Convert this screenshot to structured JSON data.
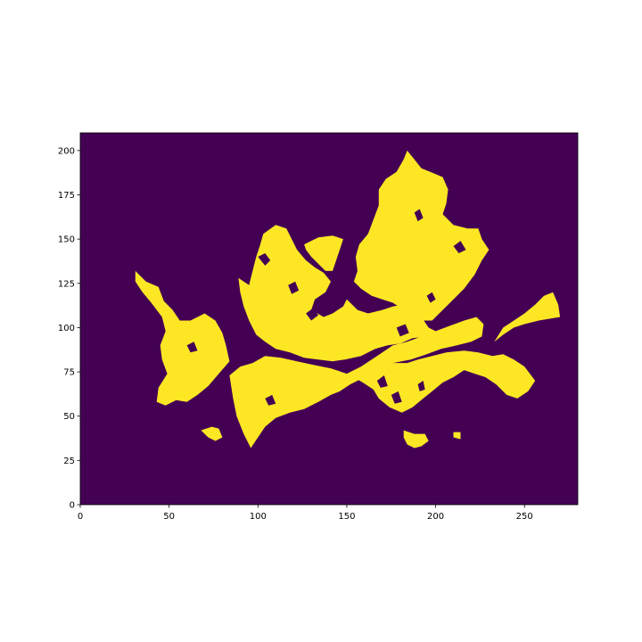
{
  "chart_data": {
    "type": "heatmap",
    "title": "",
    "xlabel": "",
    "ylabel": "",
    "xlim": [
      0,
      280
    ],
    "ylim": [
      0,
      210
    ],
    "origin": "lower",
    "grid": false,
    "colorbar": false,
    "xticks": [
      0,
      50,
      100,
      150,
      200,
      250
    ],
    "yticks": [
      0,
      25,
      50,
      75,
      100,
      125,
      150,
      175,
      200
    ],
    "xtick_labels": [
      "0",
      "50",
      "100",
      "150",
      "200",
      "250"
    ],
    "ytick_labels": [
      "0",
      "25",
      "50",
      "75",
      "100",
      "125",
      "150",
      "175",
      "200"
    ],
    "value_range": [
      0,
      1
    ],
    "colors": {
      "0": "#440154",
      "1": "#fde725"
    },
    "description_of_values": "binary mask: 1 = urban/built-up area (yellow), 0 = background (purple)",
    "mask_regions": [
      {
        "polygon": [
          [
            31,
            132
          ],
          [
            37,
            126
          ],
          [
            44,
            123
          ],
          [
            47,
            115
          ],
          [
            52,
            110
          ],
          [
            56,
            104
          ],
          [
            62,
            104
          ],
          [
            70,
            108
          ],
          [
            76,
            104
          ],
          [
            80,
            97
          ],
          [
            82,
            90
          ],
          [
            84,
            81
          ],
          [
            78,
            74
          ],
          [
            72,
            67
          ],
          [
            66,
            62
          ],
          [
            60,
            58
          ],
          [
            54,
            59
          ],
          [
            48,
            56
          ],
          [
            43,
            58
          ],
          [
            44,
            66
          ],
          [
            49,
            74
          ],
          [
            46,
            82
          ],
          [
            45,
            90
          ],
          [
            48,
            98
          ],
          [
            46,
            106
          ],
          [
            40,
            114
          ],
          [
            35,
            120
          ],
          [
            31,
            126
          ]
        ]
      },
      {
        "polygon": [
          [
            84,
            73
          ],
          [
            90,
            78
          ],
          [
            97,
            80
          ],
          [
            104,
            84
          ],
          [
            113,
            83
          ],
          [
            122,
            81
          ],
          [
            131,
            79
          ],
          [
            141,
            77
          ],
          [
            150,
            74
          ],
          [
            158,
            78
          ],
          [
            164,
            82
          ],
          [
            170,
            86
          ],
          [
            176,
            90
          ],
          [
            184,
            92
          ],
          [
            192,
            95
          ],
          [
            200,
            98
          ],
          [
            208,
            101
          ],
          [
            216,
            104
          ],
          [
            223,
            106
          ],
          [
            227,
            102
          ],
          [
            226,
            95
          ],
          [
            220,
            92
          ],
          [
            212,
            90
          ],
          [
            203,
            88
          ],
          [
            195,
            85
          ],
          [
            186,
            82
          ],
          [
            176,
            80
          ],
          [
            168,
            76
          ],
          [
            160,
            72
          ],
          [
            152,
            68
          ],
          [
            146,
            64
          ],
          [
            141,
            62
          ],
          [
            134,
            58
          ],
          [
            126,
            54
          ],
          [
            118,
            52
          ],
          [
            110,
            49
          ],
          [
            104,
            44
          ],
          [
            100,
            38
          ],
          [
            96,
            32
          ],
          [
            92,
            40
          ],
          [
            88,
            50
          ],
          [
            86,
            60
          ]
        ]
      },
      {
        "polygon": [
          [
            152,
            73
          ],
          [
            159,
            69
          ],
          [
            165,
            65
          ],
          [
            168,
            60
          ],
          [
            174,
            55
          ],
          [
            181,
            52
          ],
          [
            187,
            55
          ],
          [
            193,
            60
          ],
          [
            198,
            64
          ],
          [
            204,
            69
          ],
          [
            210,
            72
          ],
          [
            216,
            76
          ],
          [
            222,
            74
          ],
          [
            228,
            72
          ],
          [
            234,
            68
          ],
          [
            240,
            62
          ],
          [
            246,
            60
          ],
          [
            252,
            64
          ],
          [
            256,
            70
          ],
          [
            250,
            78
          ],
          [
            244,
            82
          ],
          [
            238,
            85
          ],
          [
            232,
            84
          ],
          [
            224,
            86
          ],
          [
            216,
            87
          ],
          [
            206,
            86
          ],
          [
            198,
            84
          ],
          [
            190,
            82
          ],
          [
            184,
            80
          ],
          [
            176,
            80
          ],
          [
            168,
            78
          ],
          [
            160,
            76
          ]
        ]
      },
      {
        "polygon": [
          [
            233,
            92
          ],
          [
            238,
            100
          ],
          [
            244,
            104
          ],
          [
            250,
            108
          ],
          [
            256,
            113
          ],
          [
            261,
            118
          ],
          [
            266,
            120
          ],
          [
            269,
            113
          ],
          [
            270,
            106
          ],
          [
            264,
            105
          ],
          [
            258,
            104
          ],
          [
            250,
            102
          ],
          [
            244,
            100
          ],
          [
            238,
            96
          ]
        ]
      },
      {
        "polygon": [
          [
            89,
            128
          ],
          [
            95,
            124
          ],
          [
            97,
            132
          ],
          [
            99,
            140
          ],
          [
            101,
            146
          ],
          [
            103,
            153
          ],
          [
            110,
            158
          ],
          [
            116,
            156
          ],
          [
            119,
            150
          ],
          [
            122,
            144
          ],
          [
            127,
            138
          ],
          [
            132,
            134
          ],
          [
            137,
            131
          ],
          [
            141,
            126
          ],
          [
            138,
            120
          ],
          [
            132,
            116
          ],
          [
            130,
            110
          ],
          [
            137,
            106
          ],
          [
            142,
            108
          ],
          [
            148,
            112
          ],
          [
            150,
            116
          ],
          [
            152,
            114
          ],
          [
            156,
            110
          ],
          [
            162,
            108
          ],
          [
            170,
            110
          ],
          [
            176,
            112
          ],
          [
            182,
            113
          ],
          [
            188,
            112
          ],
          [
            192,
            106
          ],
          [
            196,
            100
          ],
          [
            200,
            98
          ],
          [
            195,
            95
          ],
          [
            187,
            94
          ],
          [
            180,
            91
          ],
          [
            173,
            90
          ],
          [
            166,
            88
          ],
          [
            158,
            84
          ],
          [
            149,
            82
          ],
          [
            142,
            81
          ],
          [
            134,
            82
          ],
          [
            126,
            83
          ],
          [
            118,
            86
          ],
          [
            110,
            88
          ],
          [
            104,
            92
          ],
          [
            99,
            96
          ],
          [
            95,
            104
          ],
          [
            92,
            112
          ],
          [
            90,
            120
          ]
        ]
      },
      {
        "polygon": [
          [
            126,
            147
          ],
          [
            134,
            151
          ],
          [
            142,
            152
          ],
          [
            148,
            150
          ],
          [
            146,
            144
          ],
          [
            144,
            138
          ],
          [
            142,
            132
          ],
          [
            138,
            132
          ],
          [
            134,
            136
          ],
          [
            130,
            140
          ],
          [
            127,
            144
          ]
        ]
      },
      {
        "polygon": [
          [
            157,
            147
          ],
          [
            162,
            153
          ],
          [
            165,
            161
          ],
          [
            168,
            169
          ],
          [
            168,
            178
          ],
          [
            172,
            184
          ],
          [
            178,
            188
          ],
          [
            182,
            195
          ],
          [
            184,
            200
          ],
          [
            188,
            195
          ],
          [
            192,
            190
          ],
          [
            197,
            188
          ],
          [
            204,
            185
          ],
          [
            207,
            178
          ],
          [
            206,
            170
          ],
          [
            204,
            164
          ],
          [
            210,
            158
          ],
          [
            218,
            156
          ],
          [
            224,
            156
          ],
          [
            226,
            150
          ],
          [
            230,
            144
          ],
          [
            226,
            138
          ],
          [
            222,
            130
          ],
          [
            216,
            122
          ],
          [
            210,
            116
          ],
          [
            204,
            110
          ],
          [
            198,
            104
          ],
          [
            192,
            104
          ],
          [
            188,
            108
          ],
          [
            182,
            110
          ],
          [
            176,
            114
          ],
          [
            170,
            116
          ],
          [
            164,
            118
          ],
          [
            158,
            122
          ],
          [
            154,
            126
          ],
          [
            156,
            132
          ],
          [
            155,
            140
          ]
        ]
      },
      {
        "polygon": [
          [
            68,
            42
          ],
          [
            72,
            38
          ],
          [
            76,
            36
          ],
          [
            80,
            38
          ],
          [
            78,
            43
          ],
          [
            74,
            44
          ]
        ]
      },
      {
        "polygon": [
          [
            182,
            42
          ],
          [
            188,
            40
          ],
          [
            194,
            40
          ],
          [
            196,
            36
          ],
          [
            192,
            33
          ],
          [
            188,
            32
          ],
          [
            184,
            34
          ],
          [
            182,
            38
          ]
        ]
      },
      {
        "polygon": [
          [
            210,
            38
          ],
          [
            214,
            37
          ],
          [
            214,
            41
          ],
          [
            210,
            41
          ]
        ]
      }
    ],
    "mask_holes": [
      {
        "polygon": [
          [
            100,
            140
          ],
          [
            104,
            142
          ],
          [
            107,
            138
          ],
          [
            104,
            135
          ]
        ]
      },
      {
        "polygon": [
          [
            117,
            124
          ],
          [
            121,
            126
          ],
          [
            123,
            121
          ],
          [
            119,
            119
          ]
        ]
      },
      {
        "polygon": [
          [
            127,
            108
          ],
          [
            131,
            111
          ],
          [
            134,
            107
          ],
          [
            130,
            104
          ]
        ]
      },
      {
        "polygon": [
          [
            178,
            100
          ],
          [
            183,
            102
          ],
          [
            185,
            97
          ],
          [
            180,
            95
          ]
        ]
      },
      {
        "polygon": [
          [
            195,
            118
          ],
          [
            198,
            120
          ],
          [
            200,
            116
          ],
          [
            197,
            114
          ]
        ]
      },
      {
        "polygon": [
          [
            210,
            146
          ],
          [
            214,
            149
          ],
          [
            217,
            144
          ],
          [
            213,
            142
          ]
        ]
      },
      {
        "polygon": [
          [
            188,
            165
          ],
          [
            191,
            167
          ],
          [
            193,
            162
          ],
          [
            190,
            160
          ]
        ]
      },
      {
        "polygon": [
          [
            167,
            70
          ],
          [
            171,
            73
          ],
          [
            173,
            67
          ],
          [
            169,
            66
          ]
        ]
      },
      {
        "polygon": [
          [
            175,
            62
          ],
          [
            179,
            64
          ],
          [
            181,
            58
          ],
          [
            177,
            57
          ]
        ]
      },
      {
        "polygon": [
          [
            190,
            68
          ],
          [
            193,
            70
          ],
          [
            194,
            65
          ],
          [
            191,
            64
          ]
        ]
      },
      {
        "polygon": [
          [
            60,
            90
          ],
          [
            64,
            92
          ],
          [
            66,
            87
          ],
          [
            62,
            86
          ]
        ]
      },
      {
        "polygon": [
          [
            104,
            60
          ],
          [
            108,
            62
          ],
          [
            110,
            57
          ],
          [
            106,
            56
          ]
        ]
      }
    ]
  }
}
